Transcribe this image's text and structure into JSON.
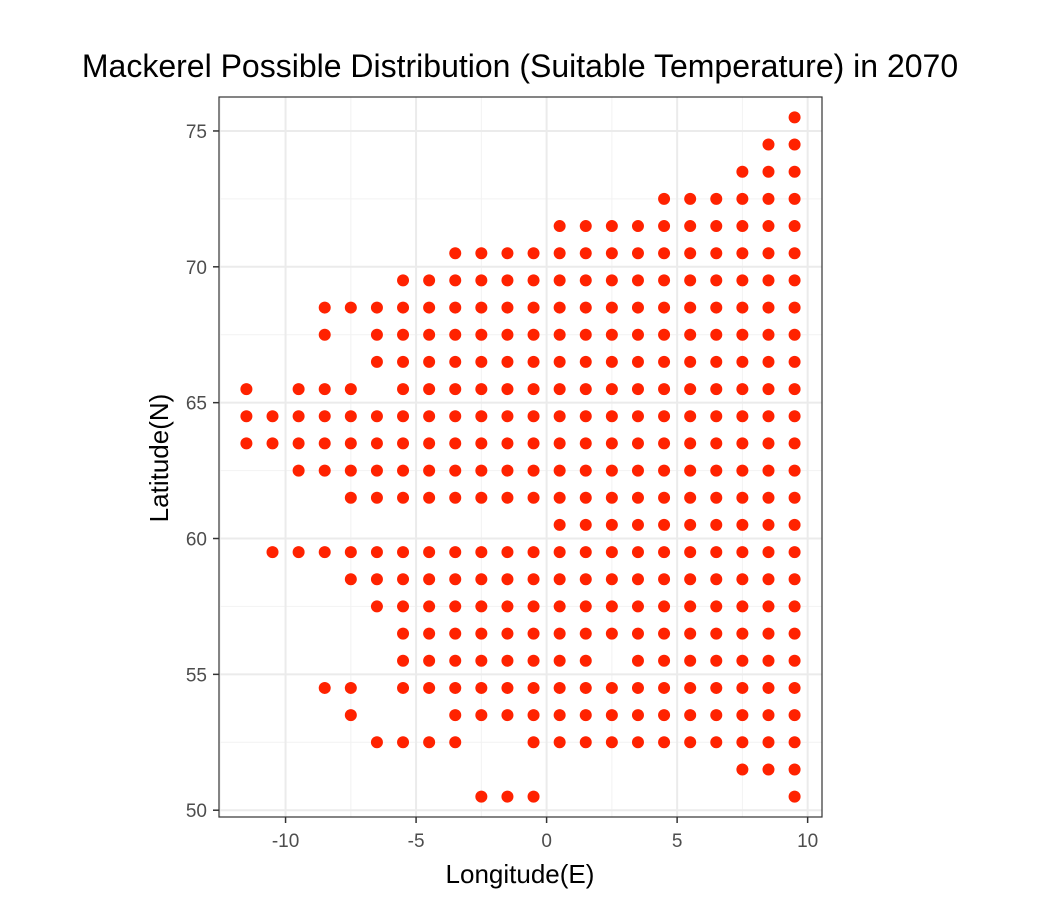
{
  "chart_data": {
    "type": "scatter",
    "title": "Mackerel Possible Distribution (Suitable Temperature) in 2070",
    "xlabel": "Longitude(E)",
    "ylabel": "Latitude(N)",
    "xlim": [
      -12.55,
      10.55
    ],
    "ylim": [
      49.75,
      76.25
    ],
    "xticks": [
      -10,
      -5,
      0,
      5,
      10
    ],
    "xtick_labels": [
      "-10",
      "-5",
      "0",
      "5",
      "10"
    ],
    "yticks": [
      50,
      55,
      60,
      65,
      70,
      75
    ],
    "ytick_labels": [
      "50",
      "55",
      "60",
      "65",
      "70",
      "75"
    ],
    "grid": true,
    "theme": "bw",
    "point_color": "#ff2200",
    "rows": [
      {
        "lat": 75.5,
        "lons": [
          9.5
        ]
      },
      {
        "lat": 74.5,
        "lons": [
          8.5,
          9.5
        ]
      },
      {
        "lat": 73.5,
        "lons": [
          7.5,
          8.5,
          9.5
        ]
      },
      {
        "lat": 72.5,
        "lons": [
          4.5,
          5.5,
          6.5,
          7.5,
          8.5,
          9.5
        ]
      },
      {
        "lat": 71.5,
        "lons": [
          0.5,
          1.5,
          2.5,
          3.5,
          4.5,
          5.5,
          6.5,
          7.5,
          8.5,
          9.5
        ]
      },
      {
        "lat": 70.5,
        "lons": [
          -3.5,
          -2.5,
          -1.5,
          -0.5,
          0.5,
          1.5,
          2.5,
          3.5,
          4.5,
          5.5,
          6.5,
          7.5,
          8.5,
          9.5
        ]
      },
      {
        "lat": 69.5,
        "lons": [
          -5.5,
          -4.5,
          -3.5,
          -2.5,
          -1.5,
          -0.5,
          0.5,
          1.5,
          2.5,
          3.5,
          4.5,
          5.5,
          6.5,
          7.5,
          8.5,
          9.5
        ]
      },
      {
        "lat": 68.5,
        "lons": [
          -8.5,
          -7.5,
          -6.5,
          -5.5,
          -4.5,
          -3.5,
          -2.5,
          -1.5,
          -0.5,
          0.5,
          1.5,
          2.5,
          3.5,
          4.5,
          5.5,
          6.5,
          7.5,
          8.5,
          9.5
        ]
      },
      {
        "lat": 67.5,
        "lons": [
          -8.5,
          -6.5,
          -5.5,
          -4.5,
          -3.5,
          -2.5,
          -1.5,
          -0.5,
          0.5,
          1.5,
          2.5,
          3.5,
          4.5,
          5.5,
          6.5,
          7.5,
          8.5,
          9.5
        ]
      },
      {
        "lat": 66.5,
        "lons": [
          -6.5,
          -5.5,
          -4.5,
          -3.5,
          -2.5,
          -1.5,
          -0.5,
          0.5,
          1.5,
          2.5,
          3.5,
          4.5,
          5.5,
          6.5,
          7.5,
          8.5,
          9.5
        ]
      },
      {
        "lat": 65.5,
        "lons": [
          -11.5,
          -9.5,
          -8.5,
          -7.5,
          -5.5,
          -4.5,
          -3.5,
          -2.5,
          -1.5,
          -0.5,
          0.5,
          1.5,
          2.5,
          3.5,
          4.5,
          5.5,
          6.5,
          7.5,
          8.5,
          9.5
        ]
      },
      {
        "lat": 64.5,
        "lons": [
          -11.5,
          -10.5,
          -9.5,
          -8.5,
          -7.5,
          -6.5,
          -5.5,
          -4.5,
          -3.5,
          -2.5,
          -1.5,
          -0.5,
          0.5,
          1.5,
          2.5,
          3.5,
          4.5,
          5.5,
          6.5,
          7.5,
          8.5,
          9.5
        ]
      },
      {
        "lat": 63.5,
        "lons": [
          -11.5,
          -10.5,
          -9.5,
          -8.5,
          -7.5,
          -6.5,
          -5.5,
          -4.5,
          -3.5,
          -2.5,
          -1.5,
          -0.5,
          0.5,
          1.5,
          2.5,
          3.5,
          4.5,
          5.5,
          6.5,
          7.5,
          8.5,
          9.5
        ]
      },
      {
        "lat": 62.5,
        "lons": [
          -9.5,
          -8.5,
          -7.5,
          -6.5,
          -5.5,
          -4.5,
          -3.5,
          -2.5,
          -1.5,
          -0.5,
          0.5,
          1.5,
          2.5,
          3.5,
          4.5,
          5.5,
          6.5,
          7.5,
          8.5,
          9.5
        ]
      },
      {
        "lat": 61.5,
        "lons": [
          -7.5,
          -6.5,
          -5.5,
          -4.5,
          -3.5,
          -2.5,
          -1.5,
          -0.5,
          0.5,
          1.5,
          2.5,
          3.5,
          4.5,
          5.5,
          6.5,
          7.5,
          8.5,
          9.5
        ]
      },
      {
        "lat": 60.5,
        "lons": [
          0.5,
          1.5,
          2.5,
          3.5,
          4.5,
          5.5,
          6.5,
          7.5,
          8.5,
          9.5
        ]
      },
      {
        "lat": 59.5,
        "lons": [
          -10.5,
          -9.5,
          -8.5,
          -7.5,
          -6.5,
          -5.5,
          -4.5,
          -3.5,
          -2.5,
          -1.5,
          -0.5,
          0.5,
          1.5,
          2.5,
          3.5,
          4.5,
          5.5,
          6.5,
          7.5,
          8.5,
          9.5
        ]
      },
      {
        "lat": 58.5,
        "lons": [
          -7.5,
          -6.5,
          -5.5,
          -4.5,
          -3.5,
          -2.5,
          -1.5,
          -0.5,
          0.5,
          1.5,
          2.5,
          3.5,
          4.5,
          5.5,
          6.5,
          7.5,
          8.5,
          9.5
        ]
      },
      {
        "lat": 57.5,
        "lons": [
          -6.5,
          -5.5,
          -4.5,
          -3.5,
          -2.5,
          -1.5,
          -0.5,
          0.5,
          1.5,
          2.5,
          3.5,
          4.5,
          5.5,
          6.5,
          7.5,
          8.5,
          9.5
        ]
      },
      {
        "lat": 56.5,
        "lons": [
          -5.5,
          -4.5,
          -3.5,
          -2.5,
          -1.5,
          -0.5,
          0.5,
          1.5,
          2.5,
          3.5,
          4.5,
          5.5,
          6.5,
          7.5,
          8.5,
          9.5
        ]
      },
      {
        "lat": 55.5,
        "lons": [
          -5.5,
          -4.5,
          -3.5,
          -2.5,
          -1.5,
          -0.5,
          0.5,
          1.5,
          3.5,
          4.5,
          5.5,
          6.5,
          7.5,
          8.5,
          9.5
        ]
      },
      {
        "lat": 54.5,
        "lons": [
          -8.5,
          -7.5,
          -5.5,
          -4.5,
          -3.5,
          -2.5,
          -1.5,
          -0.5,
          0.5,
          1.5,
          2.5,
          3.5,
          4.5,
          5.5,
          6.5,
          7.5,
          8.5,
          9.5
        ]
      },
      {
        "lat": 53.5,
        "lons": [
          -7.5,
          -3.5,
          -2.5,
          -1.5,
          -0.5,
          0.5,
          1.5,
          2.5,
          3.5,
          4.5,
          5.5,
          6.5,
          7.5,
          8.5,
          9.5
        ]
      },
      {
        "lat": 52.5,
        "lons": [
          -6.5,
          -5.5,
          -4.5,
          -3.5,
          -0.5,
          0.5,
          1.5,
          2.5,
          3.5,
          4.5,
          5.5,
          6.5,
          7.5,
          8.5,
          9.5
        ]
      },
      {
        "lat": 51.5,
        "lons": [
          7.5,
          8.5,
          9.5
        ]
      },
      {
        "lat": 50.5,
        "lons": [
          -2.5,
          -1.5,
          -0.5,
          9.5
        ]
      }
    ]
  }
}
